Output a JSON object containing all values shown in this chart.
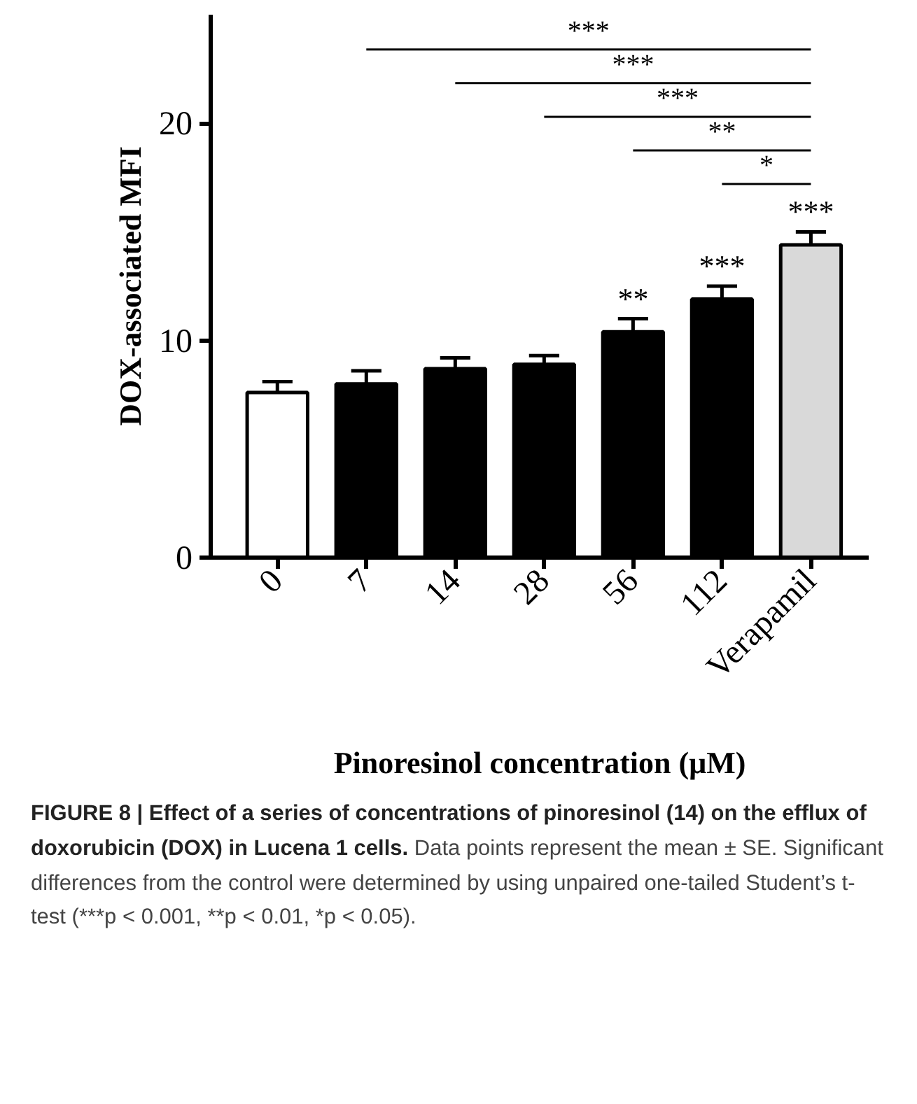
{
  "chart_data": {
    "type": "bar",
    "xlabel": "Pinoresinol concentration (μM)",
    "ylabel": "DOX-associated MFI",
    "categories": [
      "0",
      "7",
      "14",
      "28",
      "56",
      "112",
      "Verapamil"
    ],
    "values": [
      7.6,
      8.0,
      8.7,
      8.9,
      10.4,
      11.9,
      14.4
    ],
    "colors": [
      "#ffffff",
      "#000000",
      "#000000",
      "#000000",
      "#000000",
      "#000000",
      "#d9d9d9"
    ],
    "errors": [
      [
        7.6,
        8.1
      ],
      [
        8.0,
        8.6
      ],
      [
        8.7,
        9.2
      ],
      [
        8.9,
        9.3
      ],
      [
        10.4,
        11.0
      ],
      [
        11.9,
        12.5
      ],
      [
        14.4,
        15.0
      ]
    ],
    "value_labels": [
      null,
      null,
      null,
      null,
      "**",
      "***",
      "***"
    ],
    "ylim": [
      0,
      25
    ],
    "yticks": [
      0,
      10,
      20
    ],
    "grid": false,
    "annotations": [
      "***",
      "***",
      "***",
      "**",
      "*",
      "FIGURE 8 | Effect of a series of concentrations of pinoresinol (14) on the efflux of doxorubicin (DOX) in Lucena 1 cells.",
      "Data points represent the mean ± SE. Significant differences from the control were determined by using unpaired one-tailed Student’s t-test (***p < 0.001, **p < 0.01, *p < 0.05)."
    ]
  }
}
